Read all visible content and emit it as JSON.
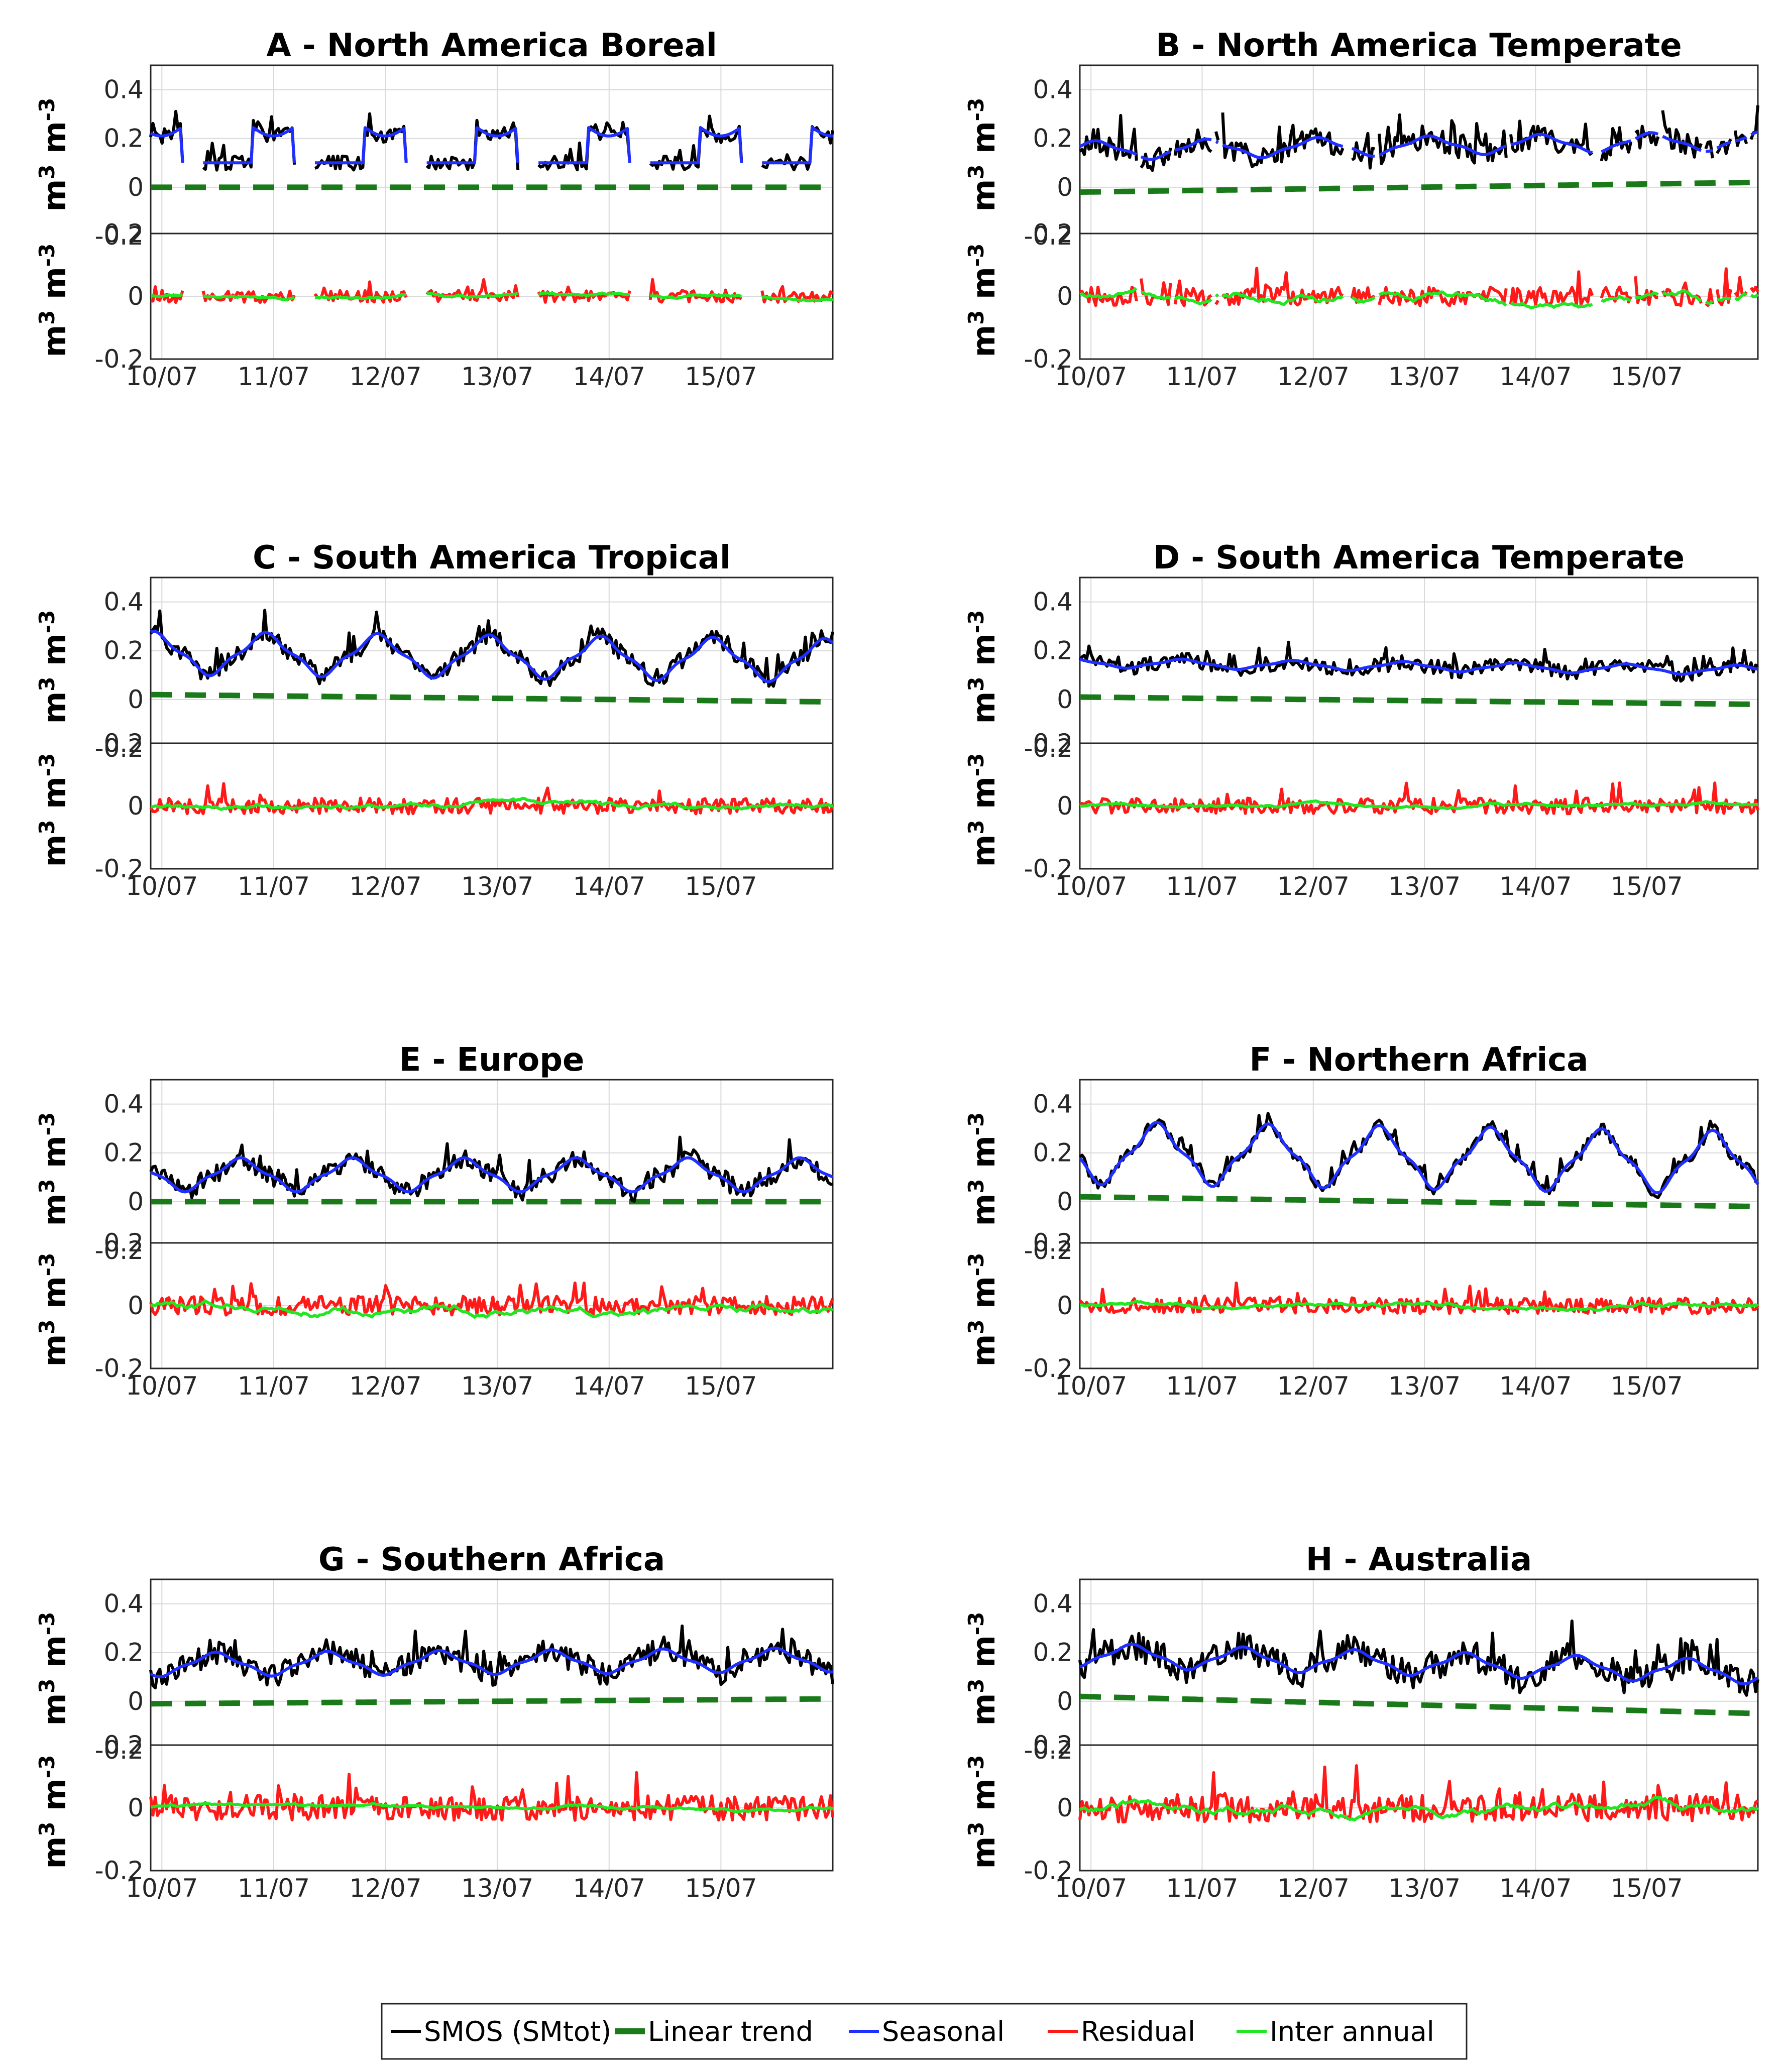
{
  "colors": {
    "smos": "#000000",
    "trend": "#1a7a1a",
    "seasonal": "#1f2fff",
    "residual": "#ff1a1a",
    "inter": "#22e622"
  },
  "axis_ylabel": {
    "base": "m",
    "sup1": "3",
    "mid": " m",
    "sup2": "-3"
  },
  "legend": {
    "smos": "SMOS (SMtot)",
    "trend": "Linear trend",
    "seasonal": "Seasonal",
    "residual": "Residual",
    "inter": "Inter annual"
  },
  "chart_data": [
    {
      "id": "A",
      "title": "A - North America Boreal",
      "type": "line",
      "x_ticks": [
        "10/07",
        "11/07",
        "12/07",
        "13/07",
        "14/07",
        "15/07"
      ],
      "top": {
        "ylim": [
          -0.2,
          0.5
        ],
        "yticks": [
          "0.4",
          "0.2",
          "0",
          "-0.2"
        ]
      },
      "bottom": {
        "ylim": [
          -0.2,
          0.2
        ],
        "yticks": [
          "0.2",
          "0",
          "-0.2"
        ]
      },
      "mean": 0.19,
      "amp": 0.09,
      "noise": 0.03,
      "res_amp": 0.02,
      "inter_amp": 0.015,
      "trend": [
        0.0,
        0.0
      ],
      "gaps": true,
      "boreal": true
    },
    {
      "id": "B",
      "title": "B - North America Temperate",
      "type": "line",
      "x_ticks": [
        "10/07",
        "11/07",
        "12/07",
        "13/07",
        "14/07",
        "15/07"
      ],
      "top": {
        "ylim": [
          -0.2,
          0.5
        ],
        "yticks": [
          "0.4",
          "0.2",
          "0",
          "-0.2"
        ]
      },
      "bottom": {
        "ylim": [
          -0.2,
          0.2
        ],
        "yticks": [
          "0.2",
          "0",
          "-0.2"
        ]
      },
      "mean": 0.17,
      "amp": 0.04,
      "noise": 0.05,
      "res_amp": 0.03,
      "inter_amp": 0.04,
      "trend": [
        -0.02,
        0.02
      ],
      "gaps": true,
      "boreal": false
    },
    {
      "id": "C",
      "title": "C - South America Tropical",
      "type": "line",
      "x_ticks": [
        "10/07",
        "11/07",
        "12/07",
        "13/07",
        "14/07",
        "15/07"
      ],
      "top": {
        "ylim": [
          -0.2,
          0.5
        ],
        "yticks": [
          "0.4",
          "0.2",
          "0",
          "-0.2"
        ]
      },
      "bottom": {
        "ylim": [
          -0.2,
          0.2
        ],
        "yticks": [
          "0.2",
          "0",
          "-0.2"
        ]
      },
      "mean": 0.17,
      "amp": 0.09,
      "noise": 0.035,
      "res_amp": 0.025,
      "inter_amp": 0.025,
      "trend": [
        0.02,
        -0.01
      ],
      "gaps": false,
      "boreal": false
    },
    {
      "id": "D",
      "title": "D - South America Temperate",
      "type": "line",
      "x_ticks": [
        "10/07",
        "11/07",
        "12/07",
        "13/07",
        "14/07",
        "15/07"
      ],
      "top": {
        "ylim": [
          -0.2,
          0.5
        ],
        "yticks": [
          "0.4",
          "0.2",
          "0",
          "-0.2"
        ]
      },
      "bottom": {
        "ylim": [
          -0.2,
          0.2
        ],
        "yticks": [
          "0.2",
          "0",
          "-0.2"
        ]
      },
      "mean": 0.14,
      "amp": 0.02,
      "noise": 0.03,
      "res_amp": 0.025,
      "inter_amp": 0.015,
      "trend": [
        0.01,
        -0.02
      ],
      "gaps": false,
      "boreal": false
    },
    {
      "id": "E",
      "title": "E - Europe",
      "type": "line",
      "x_ticks": [
        "10/07",
        "11/07",
        "12/07",
        "13/07",
        "14/07",
        "15/07"
      ],
      "top": {
        "ylim": [
          -0.2,
          0.5
        ],
        "yticks": [
          "0.4",
          "0.2",
          "0",
          "-0.2"
        ]
      },
      "bottom": {
        "ylim": [
          -0.2,
          0.2
        ],
        "yticks": [
          "0.2",
          "0",
          "-0.2"
        ]
      },
      "mean": 0.11,
      "amp": 0.07,
      "noise": 0.04,
      "res_amp": 0.03,
      "inter_amp": 0.04,
      "trend": [
        0.0,
        0.0
      ],
      "gaps": false,
      "boreal": false
    },
    {
      "id": "F",
      "title": "F - Northern Africa",
      "type": "line",
      "x_ticks": [
        "10/07",
        "11/07",
        "12/07",
        "13/07",
        "14/07",
        "15/07"
      ],
      "top": {
        "ylim": [
          -0.2,
          0.5
        ],
        "yticks": [
          "0.4",
          "0.2",
          "0",
          "-0.2"
        ]
      },
      "bottom": {
        "ylim": [
          -0.2,
          0.2
        ],
        "yticks": [
          "0.2",
          "0",
          "-0.2"
        ]
      },
      "mean": 0.18,
      "amp": 0.13,
      "noise": 0.025,
      "res_amp": 0.025,
      "inter_amp": 0.02,
      "trend": [
        0.02,
        -0.02
      ],
      "gaps": false,
      "boreal": false
    },
    {
      "id": "G",
      "title": "G - Southern Africa",
      "type": "line",
      "x_ticks": [
        "10/07",
        "11/07",
        "12/07",
        "13/07",
        "14/07",
        "15/07"
      ],
      "top": {
        "ylim": [
          -0.2,
          0.5
        ],
        "yticks": [
          "0.4",
          "0.2",
          "0",
          "-0.2"
        ]
      },
      "bottom": {
        "ylim": [
          -0.2,
          0.2
        ],
        "yticks": [
          "0.2",
          "0",
          "-0.2"
        ]
      },
      "mean": 0.16,
      "amp": 0.05,
      "noise": 0.05,
      "res_amp": 0.04,
      "inter_amp": 0.015,
      "trend": [
        -0.01,
        0.01
      ],
      "gaps": false,
      "boreal": false
    },
    {
      "id": "H",
      "title": "H - Australia",
      "type": "line",
      "x_ticks": [
        "10/07",
        "11/07",
        "12/07",
        "13/07",
        "14/07",
        "15/07"
      ],
      "top": {
        "ylim": [
          -0.2,
          0.5
        ],
        "yticks": [
          "0.4",
          "0.2",
          "0",
          "-0.2"
        ]
      },
      "bottom": {
        "ylim": [
          -0.2,
          0.2
        ],
        "yticks": [
          "0.2",
          "0",
          "-0.2"
        ]
      },
      "mean": 0.17,
      "amp": 0.05,
      "noise": 0.06,
      "res_amp": 0.045,
      "inter_amp": 0.04,
      "trend": [
        0.02,
        -0.05
      ],
      "gaps": false,
      "boreal": false
    }
  ]
}
